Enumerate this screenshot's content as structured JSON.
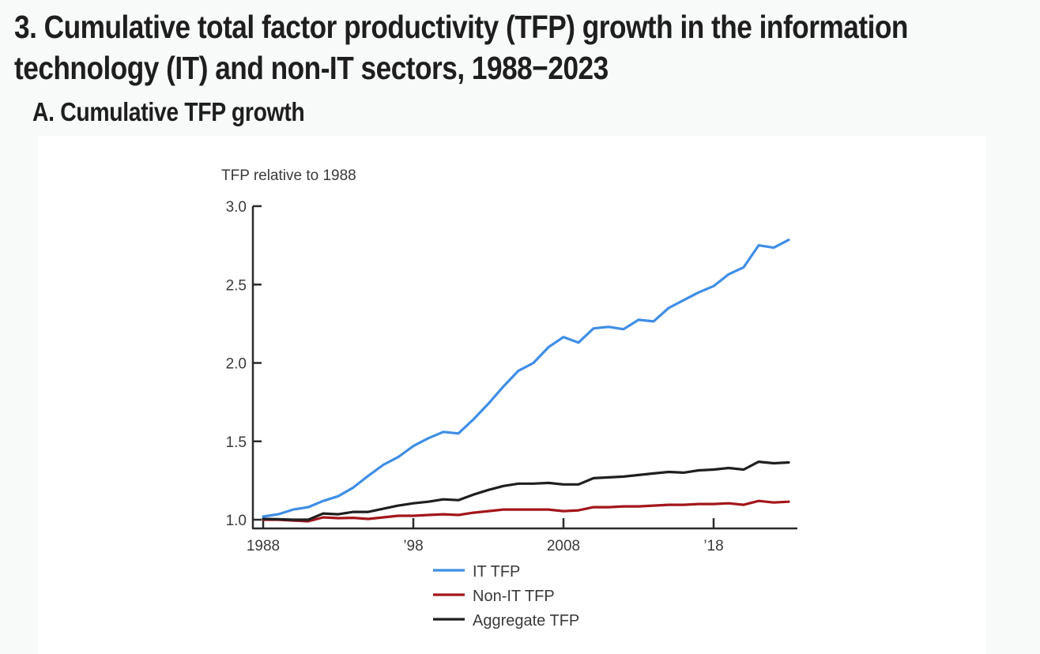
{
  "header": {
    "title_line1": "3. Cumulative total factor productivity (TFP) growth in the information",
    "title_line2": "technology (IT) and non-IT sectors, 1988−2023",
    "subtitle": "A. Cumulative TFP growth"
  },
  "chart_data": {
    "type": "line",
    "title": "A. Cumulative TFP growth",
    "ylabel": "TFP relative to 1988",
    "xlabel": "",
    "ylim": [
      1.0,
      3.0
    ],
    "xlim": [
      1988,
      2023
    ],
    "yticks": [
      1.0,
      1.5,
      2.0,
      2.5,
      3.0
    ],
    "ytick_labels": [
      "1.0",
      "1.5",
      "2.0",
      "2.5",
      "3.0"
    ],
    "xticks": [
      1988,
      1998,
      2008,
      2018
    ],
    "xtick_labels": [
      "1988",
      "’98",
      "2008",
      "’18"
    ],
    "grid": false,
    "legend_position": "bottom",
    "x": [
      1988,
      1989,
      1990,
      1991,
      1992,
      1993,
      1994,
      1995,
      1996,
      1997,
      1998,
      1999,
      2000,
      2001,
      2002,
      2003,
      2004,
      2005,
      2006,
      2007,
      2008,
      2009,
      2010,
      2011,
      2012,
      2013,
      2014,
      2015,
      2016,
      2017,
      2018,
      2019,
      2020,
      2021,
      2022,
      2023
    ],
    "series": [
      {
        "name": "IT TFP",
        "color": "#3f8ee6",
        "values": [
          1.02,
          1.035,
          1.065,
          1.08,
          1.12,
          1.15,
          1.205,
          1.28,
          1.35,
          1.4,
          1.47,
          1.52,
          1.56,
          1.55,
          1.64,
          1.74,
          1.85,
          1.95,
          2.0,
          2.1,
          2.165,
          2.13,
          2.22,
          2.23,
          2.215,
          2.275,
          2.265,
          2.35,
          2.4,
          2.45,
          2.49,
          2.565,
          2.61,
          2.75,
          2.735,
          2.785
        ]
      },
      {
        "name": "Non-IT TFP",
        "color": "#a3161b",
        "values": [
          1.0,
          1.0,
          0.995,
          0.99,
          1.015,
          1.01,
          1.012,
          1.005,
          1.015,
          1.025,
          1.025,
          1.03,
          1.035,
          1.03,
          1.045,
          1.055,
          1.065,
          1.065,
          1.065,
          1.065,
          1.055,
          1.06,
          1.08,
          1.08,
          1.085,
          1.085,
          1.09,
          1.095,
          1.095,
          1.1,
          1.1,
          1.105,
          1.095,
          1.12,
          1.11,
          1.115
        ]
      },
      {
        "name": "Aggregate TFP",
        "color": "#1f1f1f",
        "values": [
          1.005,
          1.003,
          1.0,
          1.0,
          1.04,
          1.035,
          1.05,
          1.05,
          1.07,
          1.09,
          1.105,
          1.115,
          1.13,
          1.125,
          1.16,
          1.19,
          1.215,
          1.23,
          1.23,
          1.235,
          1.225,
          1.225,
          1.265,
          1.27,
          1.275,
          1.285,
          1.295,
          1.305,
          1.3,
          1.315,
          1.32,
          1.33,
          1.32,
          1.37,
          1.36,
          1.365
        ]
      }
    ]
  }
}
